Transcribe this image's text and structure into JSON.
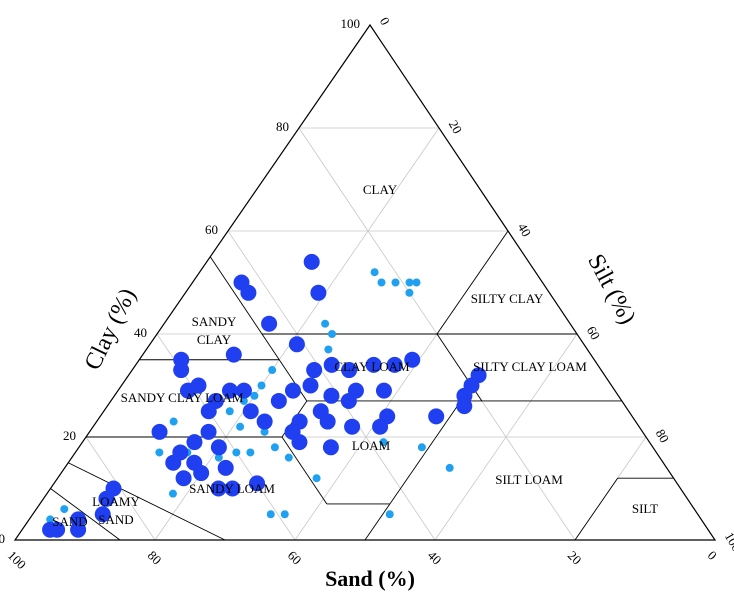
{
  "chart_data": {
    "type": "ternary",
    "axis_labels": {
      "clay": "Clay (%)",
      "silt": "Silt (%)",
      "sand": "Sand (%)"
    },
    "clay_lim": [
      0,
      100
    ],
    "silt_lim": [
      0,
      100
    ],
    "sand_lim": [
      0,
      100
    ],
    "clay_ticks": [
      0,
      20,
      40,
      60,
      80,
      100
    ],
    "silt_ticks": [
      0,
      20,
      40,
      60,
      80,
      100
    ],
    "sand_ticks": [
      0,
      20,
      40,
      60,
      80,
      100
    ],
    "grid": true,
    "classes": [
      "CLAY",
      "SILTY CLAY",
      "SANDY CLAY",
      "SILTY CLAY LOAM",
      "CLAY LOAM",
      "SANDY CLAY LOAM",
      "LOAM",
      "SILT LOAM",
      "SILT",
      "SANDY LOAM",
      "LOAMY SAND",
      "SAND"
    ],
    "series": [
      {
        "color": "#1fa0f0",
        "sand": [
          23,
          23,
          21,
          19,
          18,
          20,
          35,
          35,
          37,
          50,
          47,
          52,
          54,
          54,
          54,
          53,
          58,
          60,
          63,
          67,
          66,
          71,
          73,
          90,
          93,
          38,
          44,
          33,
          31,
          61,
          59,
          51,
          57,
          57
        ],
        "clay": [
          52,
          50,
          50,
          50,
          50,
          48,
          42,
          40,
          37,
          30,
          33,
          28,
          27,
          21,
          18,
          16,
          17,
          17,
          16,
          17,
          23,
          17,
          9,
          6,
          4,
          19,
          5,
          18,
          14,
          5,
          5,
          12,
          22,
          25
        ],
        "silt": [
          25,
          27,
          29,
          31,
          32,
          32,
          23,
          25,
          26,
          20,
          20,
          20,
          19,
          25,
          28,
          31,
          25,
          23,
          21,
          16,
          11,
          12,
          18,
          4,
          3,
          43,
          51,
          49,
          55,
          34,
          36,
          37,
          21,
          18
        ]
      },
      {
        "color": "#1f3ff0",
        "sand": [
          31,
          43,
          43,
          33,
          43,
          59,
          60,
          51,
          41,
          41,
          38,
          36,
          32,
          29,
          26,
          18,
          20,
          22,
          23,
          28,
          33,
          35,
          37,
          37,
          39,
          41,
          44,
          48,
          50,
          50,
          46,
          41,
          44,
          43,
          46,
          49,
          53,
          54,
          53,
          55,
          58,
          59,
          61,
          60,
          62,
          62,
          65,
          68,
          69,
          70,
          67,
          70,
          67,
          66,
          64,
          60,
          63,
          81,
          83,
          85,
          89,
          93,
          90,
          94
        ],
        "clay": [
          54,
          50,
          48,
          48,
          42,
          35,
          33,
          36,
          38,
          33,
          34,
          33,
          34,
          34,
          35,
          32,
          30,
          28,
          26,
          24,
          29,
          24,
          22,
          29,
          27,
          28,
          25,
          23,
          21,
          19,
          18,
          22,
          23,
          30,
          29,
          27,
          23,
          25,
          29,
          29,
          27,
          30,
          29,
          25,
          21,
          18,
          19,
          17,
          21,
          15,
          15,
          12,
          13,
          10,
          10,
          11,
          14,
          10,
          8,
          5,
          4,
          2,
          2,
          2
        ],
        "silt": [
          15,
          7,
          9,
          19,
          15,
          6,
          7,
          13,
          21,
          26,
          28,
          31,
          34,
          37,
          39,
          50,
          50,
          50,
          51,
          48,
          38,
          41,
          41,
          34,
          34,
          31,
          31,
          29,
          29,
          31,
          36,
          37,
          33,
          27,
          25,
          24,
          24,
          21,
          18,
          16,
          15,
          11,
          10,
          15,
          17,
          20,
          16,
          15,
          10,
          15,
          18,
          18,
          20,
          24,
          26,
          29,
          23,
          9,
          9,
          10,
          7,
          5,
          8,
          4
        ]
      }
    ]
  }
}
